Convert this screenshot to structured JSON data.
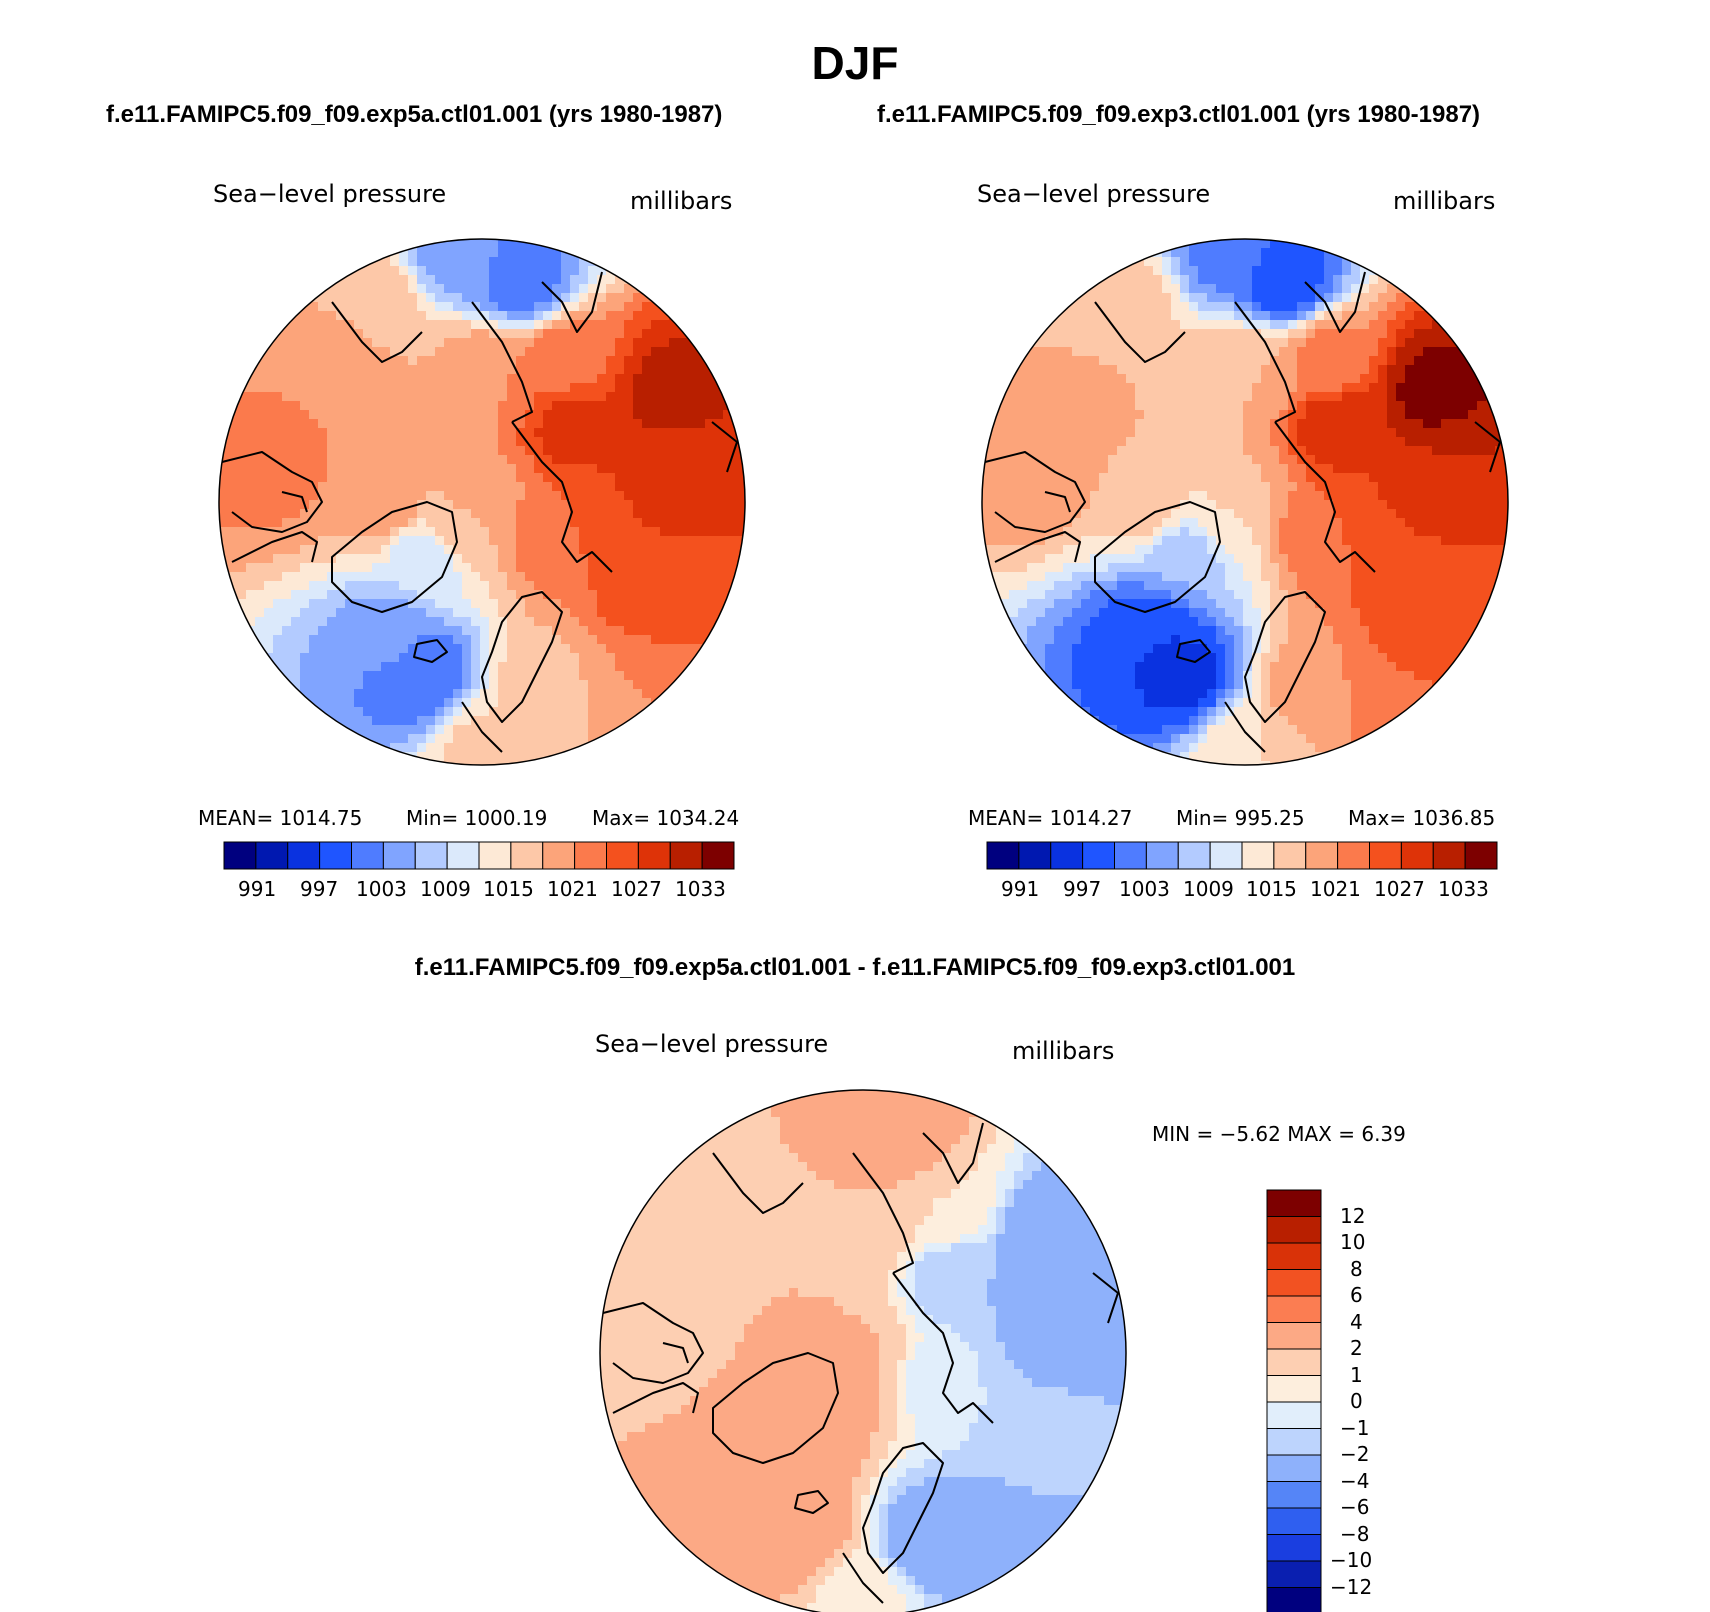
{
  "season": "DJF",
  "case_titles": {
    "case1": "f.e11.FAMIPC5.f09_f09.exp5a.ctl01.001 (yrs 1980-1987)",
    "case2": "f.e11.FAMIPC5.f09_f09.exp3.ctl01.001 (yrs 1980-1987)",
    "diff": "f.e11.FAMIPC5.f09_f09.exp5a.ctl01.001 - f.e11.FAMIPC5.f09_f09.exp3.ctl01.001"
  },
  "panels": [
    {
      "variable": "Sea−level pressure",
      "units": "millibars",
      "stats": {
        "mean": "MEAN=  1014.75",
        "min": "Min=  1000.19",
        "max": "Max=  1034.24"
      },
      "colorbar_labels": [
        "991",
        "997",
        "1003",
        "1009",
        "1015",
        "1021",
        "1027",
        "1033"
      ]
    },
    {
      "variable": "Sea−level pressure",
      "units": "millibars",
      "stats": {
        "mean": "MEAN=  1014.27",
        "min": "Min=  995.25",
        "max": "Max=  1036.85"
      },
      "colorbar_labels": [
        "991",
        "997",
        "1003",
        "1009",
        "1015",
        "1021",
        "1027",
        "1033"
      ]
    },
    {
      "variable": "Sea−level pressure",
      "units": "millibars",
      "stats": {
        "minmax": "MIN =   −5.62  MAX =     6.39"
      },
      "colorbar_labels": [
        "12",
        "10",
        "8",
        "6",
        "4",
        "2",
        "1",
        "0",
        "−1",
        "−2",
        "−4",
        "−6",
        "−8",
        "−10",
        "−12"
      ]
    }
  ],
  "colors": {
    "abs_scale": [
      "#00007f",
      "#0018b0",
      "#0a32e0",
      "#1f55ff",
      "#4f7cff",
      "#80a4ff",
      "#b3cbff",
      "#dbe9fb",
      "#fde9d6",
      "#fdc8a8",
      "#fca47a",
      "#fb7a4c",
      "#f4511e",
      "#de3308",
      "#b81f00",
      "#7d0000"
    ],
    "diff_scale": [
      "#00007f",
      "#0a1fb0",
      "#1a3ee0",
      "#2f5ff0",
      "#5585f7",
      "#8eb1fb",
      "#bdd4fd",
      "#e1eefb",
      "#fdeedd",
      "#fdcfb2",
      "#fca985",
      "#fb7d52",
      "#f25222",
      "#d93208",
      "#b81f00",
      "#7d0000"
    ]
  },
  "map_fields": {
    "case1": [
      {
        "lon": 130,
        "colat": 18,
        "value": 1028
      },
      {
        "lon": 120,
        "colat": 33,
        "value": 1031
      },
      {
        "lon": 100,
        "colat": 30,
        "value": 1029
      },
      {
        "lon": 90,
        "colat": 25,
        "value": 1027
      },
      {
        "lon": 60,
        "colat": 30,
        "value": 1026
      },
      {
        "lon": 40,
        "colat": 35,
        "value": 1021
      },
      {
        "lon": 20,
        "colat": 30,
        "value": 1017
      },
      {
        "lon": 0,
        "colat": 38,
        "value": 1016
      },
      {
        "lon": -20,
        "colat": 28,
        "value": 1000
      },
      {
        "lon": -35,
        "colat": 25,
        "value": 1004
      },
      {
        "lon": -45,
        "colat": 12,
        "value": 1010
      },
      {
        "lon": -40,
        "colat": 5,
        "value": 1017
      },
      {
        "lon": -90,
        "colat": 15,
        "value": 1020
      },
      {
        "lon": -100,
        "colat": 32,
        "value": 1022
      },
      {
        "lon": -120,
        "colat": 28,
        "value": 1021
      },
      {
        "lon": -150,
        "colat": 35,
        "value": 1018
      },
      {
        "lon": -175,
        "colat": 38,
        "value": 1004
      },
      {
        "lon": 170,
        "colat": 34,
        "value": 1001
      },
      {
        "lon": 175,
        "colat": 20,
        "value": 1021
      },
      {
        "lon": 150,
        "colat": 25,
        "value": 1023
      },
      {
        "lon": 0,
        "colat": 0,
        "value": 1020
      },
      {
        "lon": -160,
        "colat": 20,
        "value": 1018
      },
      {
        "lon": 70,
        "colat": 12,
        "value": 1024
      }
    ],
    "case2": [
      {
        "lon": 130,
        "colat": 18,
        "value": 1029
      },
      {
        "lon": 120,
        "colat": 33,
        "value": 1034
      },
      {
        "lon": 100,
        "colat": 30,
        "value": 1030
      },
      {
        "lon": 90,
        "colat": 25,
        "value": 1027
      },
      {
        "lon": 60,
        "colat": 30,
        "value": 1026
      },
      {
        "lon": 40,
        "colat": 35,
        "value": 1024
      },
      {
        "lon": 20,
        "colat": 30,
        "value": 1020
      },
      {
        "lon": 0,
        "colat": 38,
        "value": 1015
      },
      {
        "lon": -20,
        "colat": 28,
        "value": 996
      },
      {
        "lon": -35,
        "colat": 25,
        "value": 997
      },
      {
        "lon": -45,
        "colat": 12,
        "value": 1006
      },
      {
        "lon": -40,
        "colat": 5,
        "value": 1013
      },
      {
        "lon": -90,
        "colat": 15,
        "value": 1017
      },
      {
        "lon": -100,
        "colat": 32,
        "value": 1021
      },
      {
        "lon": -120,
        "colat": 28,
        "value": 1019
      },
      {
        "lon": -150,
        "colat": 35,
        "value": 1016
      },
      {
        "lon": -175,
        "colat": 38,
        "value": 1002
      },
      {
        "lon": 170,
        "colat": 34,
        "value": 998
      },
      {
        "lon": 175,
        "colat": 20,
        "value": 1018
      },
      {
        "lon": 150,
        "colat": 25,
        "value": 1022
      },
      {
        "lon": 0,
        "colat": 0,
        "value": 1018
      },
      {
        "lon": -160,
        "colat": 20,
        "value": 1017
      },
      {
        "lon": 70,
        "colat": 12,
        "value": 1024
      }
    ],
    "diff": [
      {
        "lon": 130,
        "colat": 18,
        "value": -2
      },
      {
        "lon": 120,
        "colat": 33,
        "value": -4
      },
      {
        "lon": 100,
        "colat": 30,
        "value": -3
      },
      {
        "lon": 90,
        "colat": 25,
        "value": -2
      },
      {
        "lon": 60,
        "colat": 30,
        "value": -1.5
      },
      {
        "lon": 40,
        "colat": 35,
        "value": -3
      },
      {
        "lon": 20,
        "colat": 30,
        "value": -3
      },
      {
        "lon": 0,
        "colat": 38,
        "value": 0.5
      },
      {
        "lon": -20,
        "colat": 28,
        "value": 3
      },
      {
        "lon": -35,
        "colat": 25,
        "value": 4
      },
      {
        "lon": -45,
        "colat": 12,
        "value": 3
      },
      {
        "lon": -40,
        "colat": 5,
        "value": 3
      },
      {
        "lon": -90,
        "colat": 15,
        "value": 2
      },
      {
        "lon": -100,
        "colat": 32,
        "value": 1
      },
      {
        "lon": -120,
        "colat": 28,
        "value": 2
      },
      {
        "lon": -150,
        "colat": 35,
        "value": 2
      },
      {
        "lon": -175,
        "colat": 38,
        "value": 2
      },
      {
        "lon": 170,
        "colat": 34,
        "value": 3
      },
      {
        "lon": 175,
        "colat": 20,
        "value": 2
      },
      {
        "lon": 150,
        "colat": 25,
        "value": 1
      },
      {
        "lon": 0,
        "colat": 0,
        "value": 2
      },
      {
        "lon": -160,
        "colat": 20,
        "value": 2
      },
      {
        "lon": 70,
        "colat": 12,
        "value": -0.5
      }
    ]
  }
}
